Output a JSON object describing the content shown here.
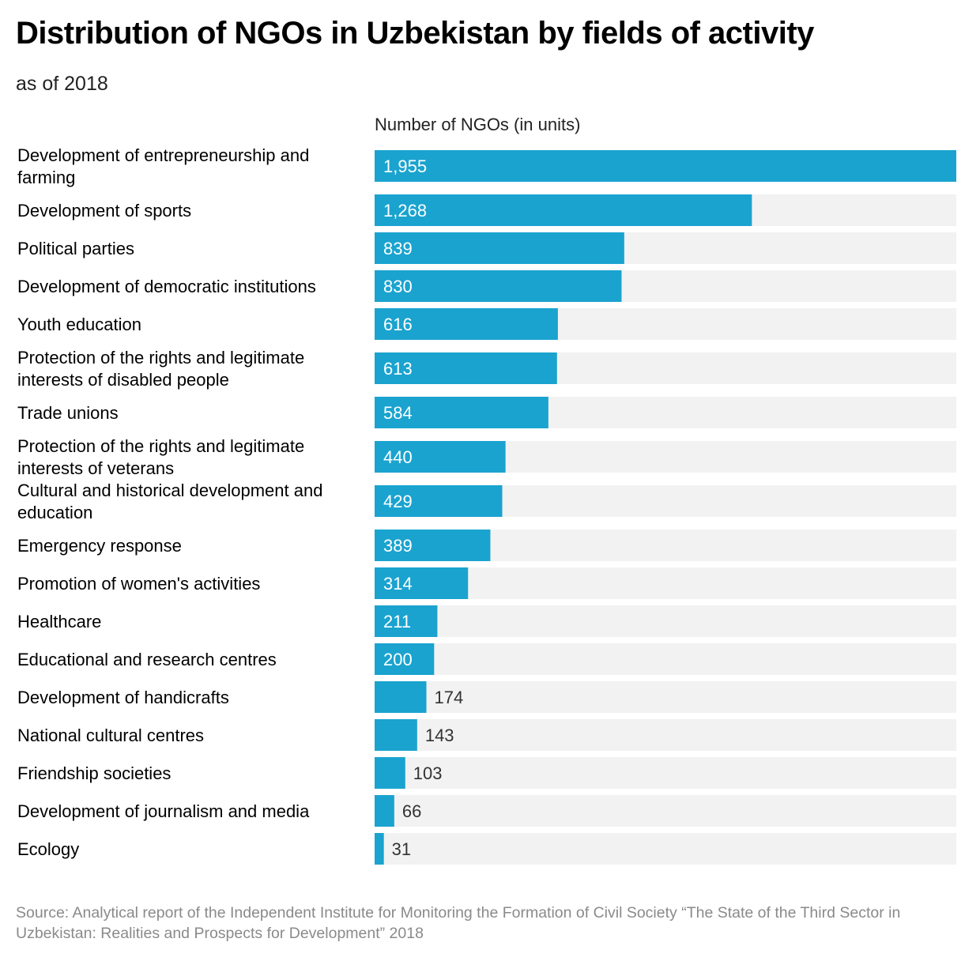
{
  "title": "Distribution of NGOs in Uzbekistan by fields of activity",
  "subtitle": "as of 2018",
  "source": "Source: Analytical report of the Independent Institute for Monitoring the Formation of Civil Society “The State of the Third Sector in Uzbekistan: Realities and Prospects for Development” 2018",
  "colors": {
    "bar": "#1aa3cf",
    "track": "#f2f2f2",
    "label_inside": "#ffffff",
    "label_outside": "#333333"
  },
  "chart_data": {
    "type": "bar",
    "orientation": "horizontal",
    "xlabel": "Number of NGOs (in units)",
    "xlim": [
      0,
      1955
    ],
    "grid": false,
    "categories": [
      "Development of entrepreneurship and farming",
      "Development of sports",
      "Political parties",
      "Development of democratic institutions",
      "Youth education",
      "Protection of the rights and legitimate interests of disabled people",
      "Trade unions",
      "Protection of the rights and legitimate interests of veterans",
      "Cultural and historical development and education",
      "Emergency response",
      "Promotion of women's activities",
      "Healthcare",
      "Educational and research centres",
      "Development of handicrafts",
      "National cultural centres",
      "Friendship societies",
      "Development of journalism and media",
      "Ecology"
    ],
    "values": [
      1955,
      1268,
      839,
      830,
      616,
      613,
      584,
      440,
      429,
      389,
      314,
      211,
      200,
      174,
      143,
      103,
      66,
      31
    ],
    "value_labels": [
      "1,955",
      "1,268",
      "839",
      "830",
      "616",
      "613",
      "584",
      "440",
      "429",
      "389",
      "314",
      "211",
      "200",
      "174",
      "143",
      "103",
      "66",
      "31"
    ]
  }
}
